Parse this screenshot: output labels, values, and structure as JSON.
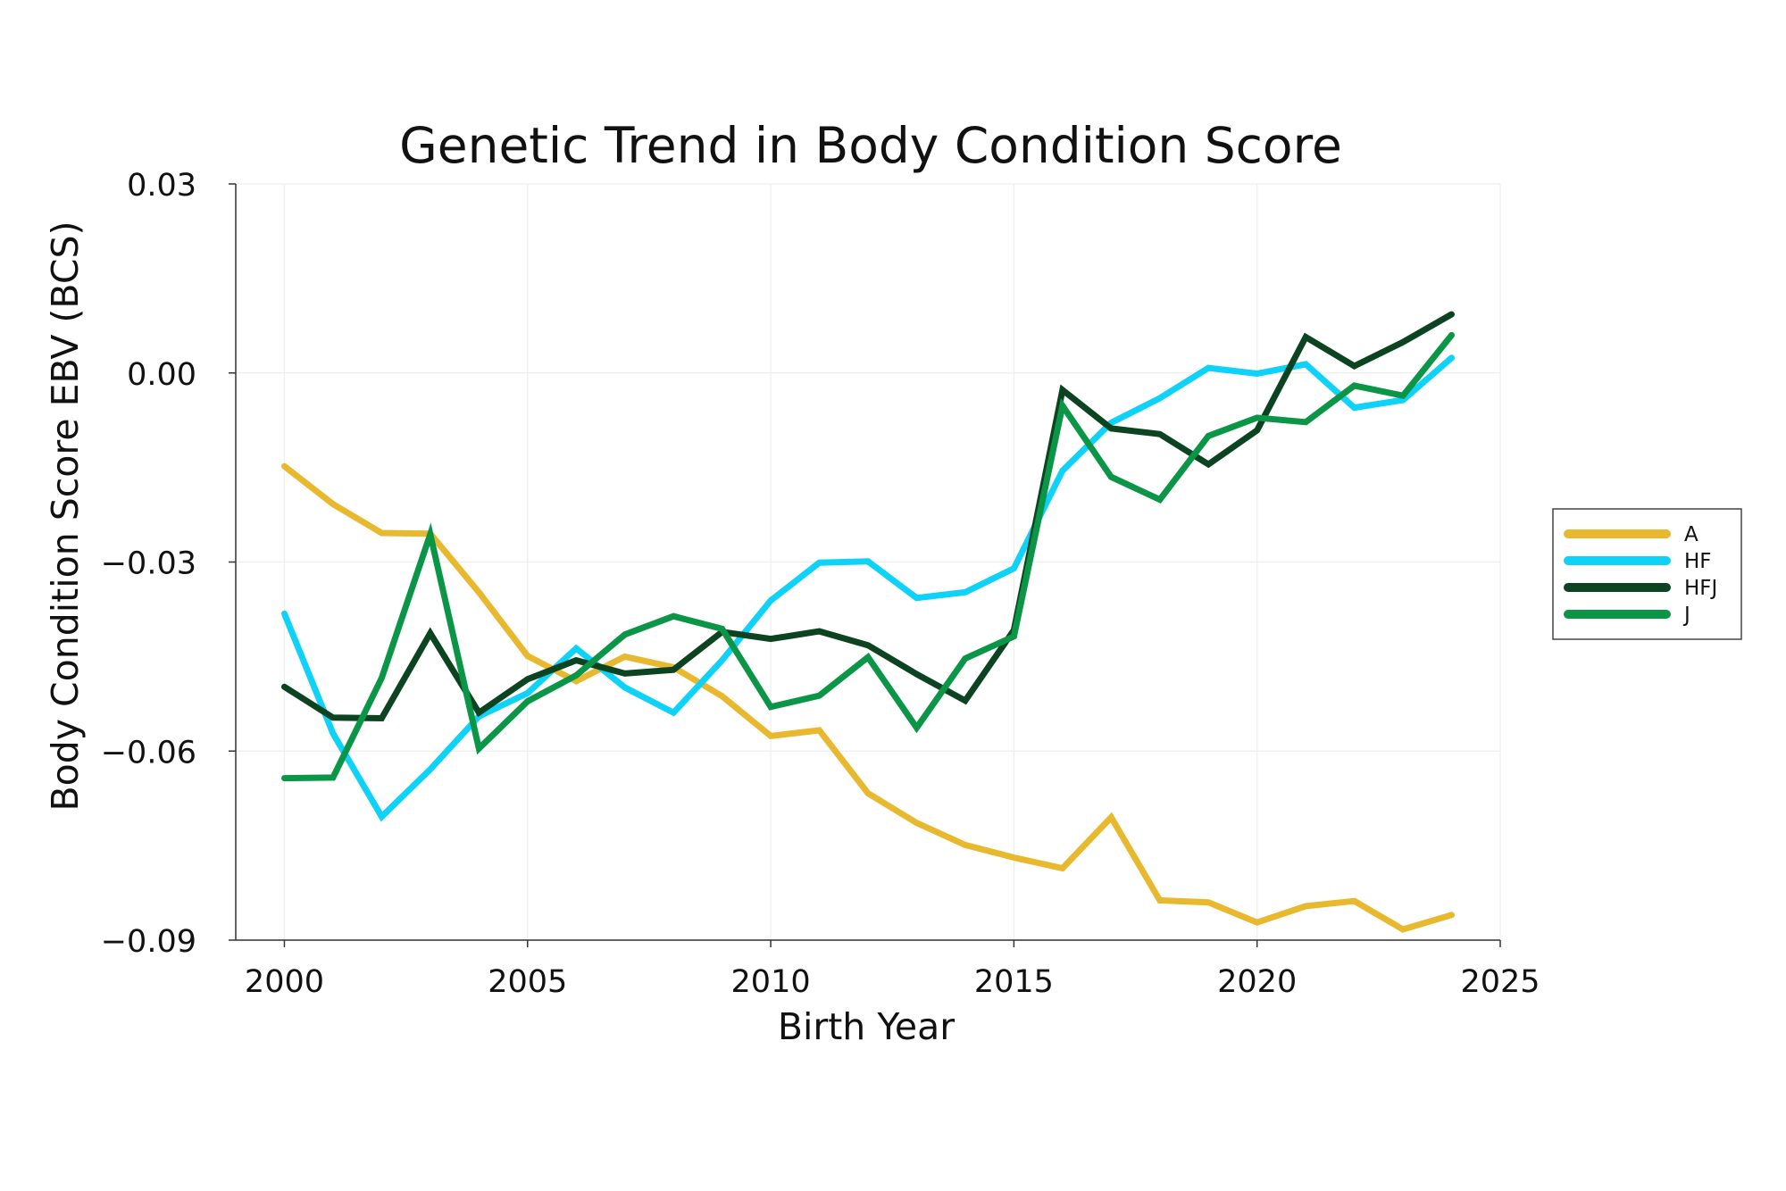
{
  "chart_data": {
    "type": "line",
    "title": "Genetic Trend in Body Condition Score",
    "xlabel": "Birth Year",
    "ylabel": "Body Condition Score EBV (BCS)",
    "xlim": [
      1999,
      2025
    ],
    "ylim": [
      -0.09,
      0.03
    ],
    "x_ticks": [
      2000,
      2005,
      2010,
      2015,
      2020,
      2025
    ],
    "x_tick_labels": [
      "2000",
      "2005",
      "2010",
      "2015",
      "2020",
      "2025"
    ],
    "y_ticks": [
      -0.09,
      -0.06,
      -0.03,
      0.0,
      0.03
    ],
    "y_tick_labels": [
      "−0.09",
      "−0.06",
      "−0.03",
      "0.00",
      "0.03"
    ],
    "grid": true,
    "legend_position": "right",
    "x": [
      2000,
      2001,
      2002,
      2003,
      2004,
      2005,
      2006,
      2007,
      2008,
      2009,
      2010,
      2011,
      2012,
      2013,
      2014,
      2015,
      2016,
      2017,
      2018,
      2019,
      2020,
      2021,
      2022,
      2023,
      2024
    ],
    "series": [
      {
        "name": "A",
        "color": "#E8B92E",
        "values": [
          -0.0148,
          -0.0208,
          -0.0254,
          -0.0255,
          -0.0348,
          -0.0449,
          -0.0489,
          -0.045,
          -0.0467,
          -0.0513,
          -0.0576,
          -0.0567,
          -0.0667,
          -0.0714,
          -0.0749,
          -0.0769,
          -0.0786,
          -0.0705,
          -0.0837,
          -0.084,
          -0.0872,
          -0.0846,
          -0.0838,
          -0.0883,
          -0.086
        ]
      },
      {
        "name": "HF",
        "color": "#0ED2F7",
        "values": [
          -0.0382,
          -0.0572,
          -0.0704,
          -0.0629,
          -0.0545,
          -0.0508,
          -0.0437,
          -0.0499,
          -0.0539,
          -0.0456,
          -0.0361,
          -0.0301,
          -0.0299,
          -0.0357,
          -0.0348,
          -0.031,
          -0.0155,
          -0.0079,
          -0.004,
          0.0008,
          -0.0001,
          0.0014,
          -0.0055,
          -0.0043,
          0.0024
        ]
      },
      {
        "name": "HFJ",
        "color": "#0C4421",
        "values": [
          -0.0498,
          -0.0547,
          -0.0548,
          -0.0413,
          -0.0539,
          -0.0486,
          -0.0456,
          -0.0477,
          -0.0471,
          -0.0411,
          -0.0422,
          -0.041,
          -0.0432,
          -0.0478,
          -0.052,
          -0.0408,
          -0.0027,
          -0.0088,
          -0.0097,
          -0.0145,
          -0.0091,
          0.0057,
          0.0011,
          0.0049,
          0.0093
        ]
      },
      {
        "name": "J",
        "color": "#0B9647",
        "values": [
          -0.0643,
          -0.0642,
          -0.0484,
          -0.0256,
          -0.0596,
          -0.0521,
          -0.048,
          -0.0415,
          -0.0386,
          -0.0406,
          -0.053,
          -0.0512,
          -0.0451,
          -0.0563,
          -0.0453,
          -0.0418,
          -0.0052,
          -0.0165,
          -0.0201,
          -0.01,
          -0.0071,
          -0.0078,
          -0.002,
          -0.0036,
          0.006
        ]
      }
    ]
  }
}
